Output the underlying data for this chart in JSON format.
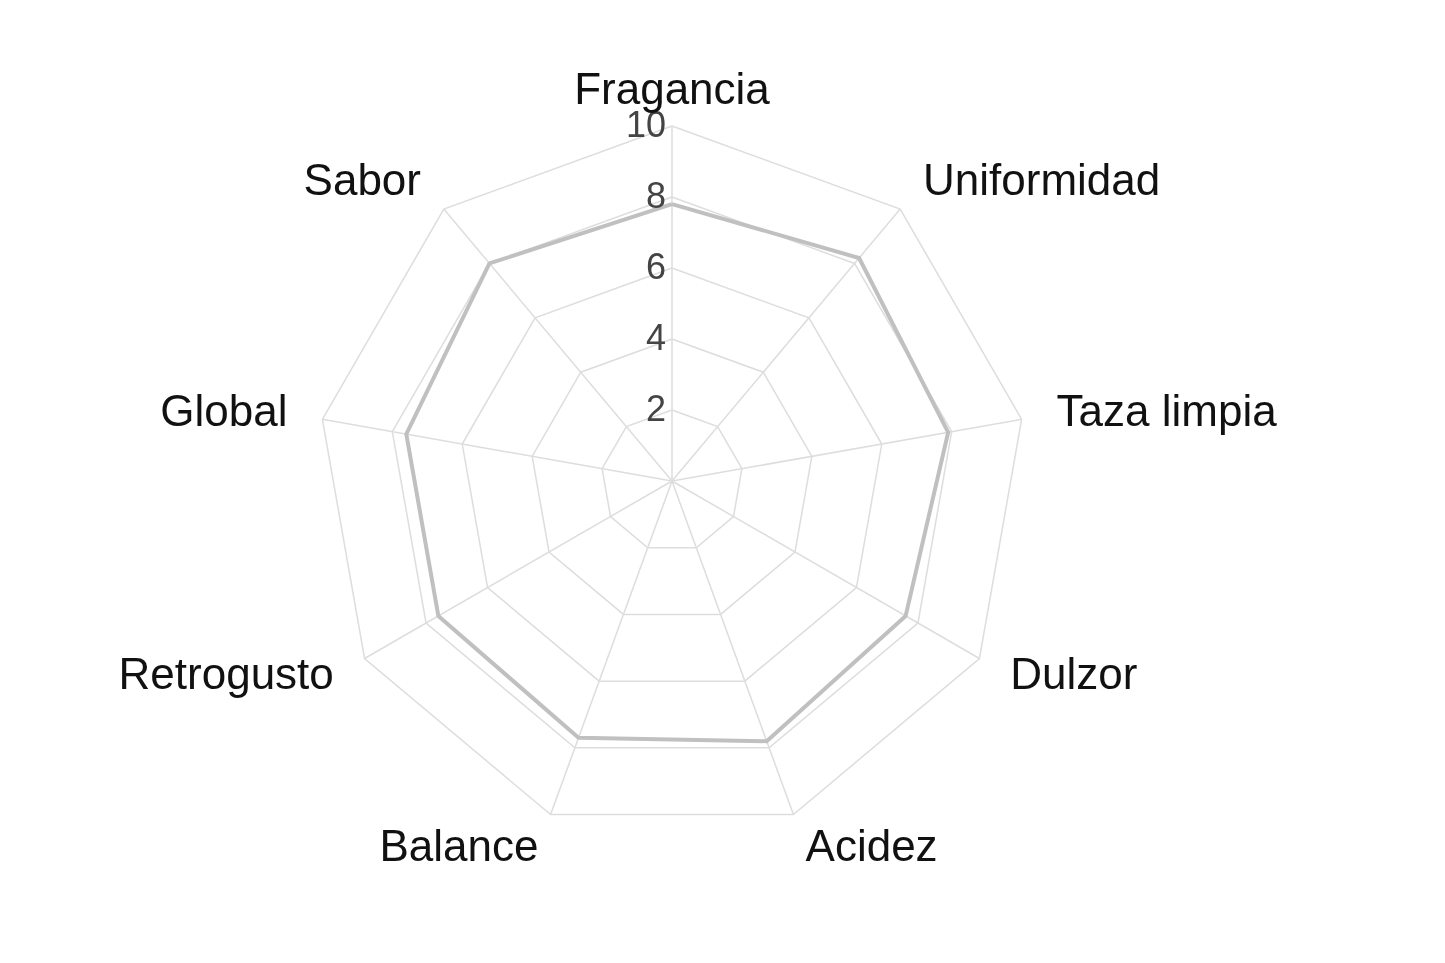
{
  "chart_data": {
    "type": "radar",
    "categories": [
      "Fragancia",
      "Uniformidad",
      "Taza limpia",
      "Dulzor",
      "Acidez",
      "Balance",
      "Retrogusto",
      "Global",
      "Sabor"
    ],
    "series": [
      {
        "color": "#c0c0c0",
        "values": [
          7.8,
          8.2,
          7.9,
          7.6,
          7.8,
          7.7,
          7.6,
          7.6,
          8.0
        ]
      }
    ],
    "ylim": [
      0,
      10
    ],
    "yticks": [
      2,
      4,
      6,
      8,
      10
    ],
    "grid": true
  }
}
